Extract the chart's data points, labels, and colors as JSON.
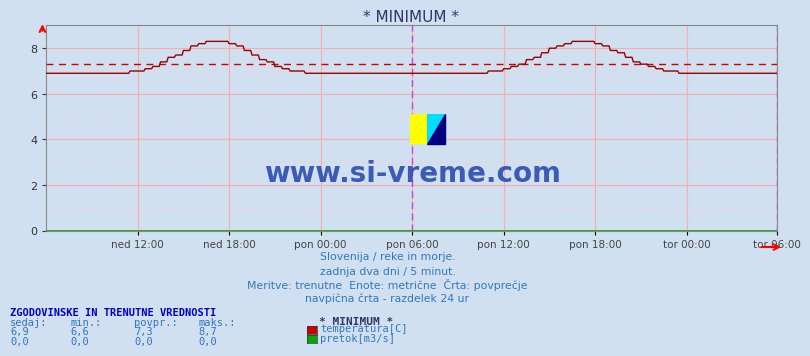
{
  "title": "* MINIMUM *",
  "background_color": "#d0e0f0",
  "plot_bg_color": "#d0e0f0",
  "ylim": [
    0,
    9
  ],
  "yticks": [
    0,
    2,
    4,
    6,
    8
  ],
  "xlabel_ticks": [
    "ned 12:00",
    "ned 18:00",
    "pon 00:00",
    "pon 06:00",
    "pon 12:00",
    "pon 18:00",
    "tor 00:00",
    "tor 06:00"
  ],
  "n_points": 576,
  "avg_value": 7.3,
  "temp_color": "#990000",
  "avg_line_color": "#cc0000",
  "grid_color": "#ffaaaa",
  "grid_minor_color": "#ffcccc",
  "vline_color": "#cc44cc",
  "watermark": "www.si-vreme.com",
  "watermark_color": "#2244aa",
  "subtitle1": "Slovenija / reke in morje.",
  "subtitle2": "zadnja dva dni / 5 minut.",
  "subtitle3": "Meritve: trenutne  Enote: metrične  Črta: povprečje",
  "subtitle4": "navpična črta - razdelek 24 ur",
  "text_color": "#3377bb",
  "table_header": "ZGODOVINSKE IN TRENUTNE VREDNOSTI",
  "col_headers": [
    "sedaj:",
    "min.:",
    "povpr.:",
    "maks.:"
  ],
  "row1_vals": [
    "6,9",
    "6,6",
    "7,3",
    "8,7"
  ],
  "row2_vals": [
    "0,0",
    "0,0",
    "0,0",
    "0,0"
  ],
  "legend_title": "* MINIMUM *",
  "legend_items": [
    "temperatura[C]",
    "pretok[m3/s]"
  ],
  "legend_colors": [
    "#cc0000",
    "#00aa00"
  ]
}
